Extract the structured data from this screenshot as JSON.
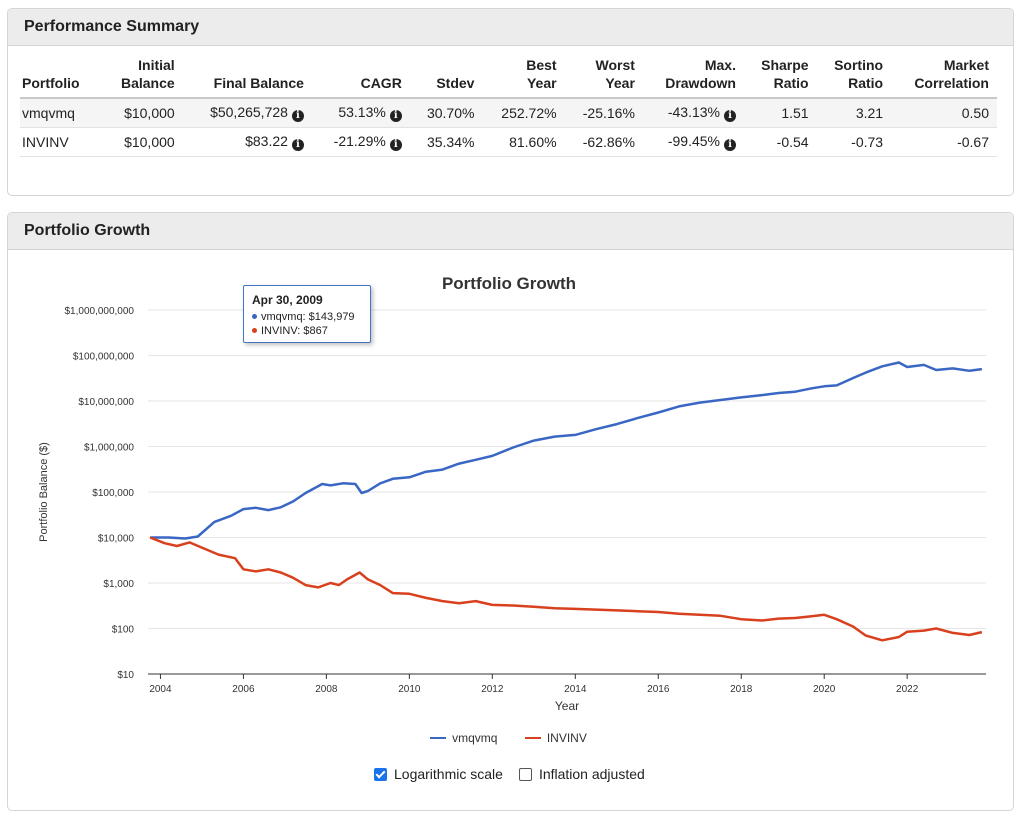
{
  "summary": {
    "title": "Performance Summary",
    "headers": {
      "portfolio": "Portfolio",
      "initial1": "Initial",
      "initial2": "Balance",
      "final": "Final Balance",
      "cagr": "CAGR",
      "stdev": "Stdev",
      "best1": "Best",
      "best2": "Year",
      "worst1": "Worst",
      "worst2": "Year",
      "maxdd1": "Max.",
      "maxdd2": "Drawdown",
      "sharpe1": "Sharpe",
      "sharpe2": "Ratio",
      "sortino1": "Sortino",
      "sortino2": "Ratio",
      "corr1": "Market",
      "corr2": "Correlation"
    },
    "rows": [
      {
        "portfolio": "vmqvmq",
        "initial": "$10,000",
        "final": "$50,265,728",
        "cagr": "53.13%",
        "stdev": "30.70%",
        "best": "252.72%",
        "worst": "-25.16%",
        "maxdd": "-43.13%",
        "sharpe": "1.51",
        "sortino": "3.21",
        "corr": "0.50"
      },
      {
        "portfolio": "INVINV",
        "initial": "$10,000",
        "final": "$83.22",
        "cagr": "-21.29%",
        "stdev": "35.34%",
        "best": "81.60%",
        "worst": "-62.86%",
        "maxdd": "-99.45%",
        "sharpe": "-0.54",
        "sortino": "-0.73",
        "corr": "-0.67"
      }
    ],
    "info_glyph": "i"
  },
  "growth": {
    "panel_title": "Portfolio Growth",
    "tooltip": {
      "date": "Apr 30, 2009",
      "lines": [
        "vmqvmq: $143,979",
        "INVINV: $867"
      ]
    },
    "options": {
      "log_label": "Logarithmic scale",
      "log_checked": true,
      "infl_label": "Inflation adjusted",
      "infl_checked": false
    }
  },
  "chart_data": {
    "type": "line",
    "title": "Portfolio Growth",
    "xlabel": "Year",
    "ylabel": "Portfolio Balance ($)",
    "yscale": "log",
    "ylim": [
      10,
      1000000000
    ],
    "xlim": [
      2003.7,
      2023.9
    ],
    "y_ticks": [
      {
        "v": 10,
        "label": "$10"
      },
      {
        "v": 100,
        "label": "$100"
      },
      {
        "v": 1000,
        "label": "$1,000"
      },
      {
        "v": 10000,
        "label": "$10,000"
      },
      {
        "v": 100000,
        "label": "$100,000"
      },
      {
        "v": 1000000,
        "label": "$1,000,000"
      },
      {
        "v": 10000000,
        "label": "$10,000,000"
      },
      {
        "v": 100000000,
        "label": "$100,000,000"
      },
      {
        "v": 1000000000,
        "label": "$1,000,000,000"
      }
    ],
    "x_ticks": [
      2004,
      2006,
      2008,
      2010,
      2012,
      2014,
      2016,
      2018,
      2020,
      2022
    ],
    "legend": "bottom",
    "series": [
      {
        "name": "vmqvmq",
        "color": "#3a66c4",
        "x": [
          2003.75,
          2004.2,
          2004.6,
          2004.9,
          2005.3,
          2005.7,
          2006.0,
          2006.3,
          2006.6,
          2006.9,
          2007.2,
          2007.5,
          2007.9,
          2008.1,
          2008.4,
          2008.7,
          2008.85,
          2009.0,
          2009.3,
          2009.6,
          2010.0,
          2010.4,
          2010.8,
          2011.2,
          2011.6,
          2012.0,
          2012.5,
          2013.0,
          2013.5,
          2014.0,
          2014.5,
          2015.0,
          2015.5,
          2016.0,
          2016.5,
          2017.0,
          2017.5,
          2018.0,
          2018.5,
          2018.9,
          2019.3,
          2019.7,
          2020.0,
          2020.3,
          2020.7,
          2021.0,
          2021.4,
          2021.8,
          2022.0,
          2022.4,
          2022.7,
          2023.1,
          2023.5,
          2023.8
        ],
        "y": [
          10000,
          10000,
          9500,
          10500,
          22000,
          30000,
          42000,
          45000,
          40000,
          46000,
          62000,
          95000,
          150000,
          140000,
          155000,
          150000,
          95000,
          105000,
          155000,
          195000,
          210000,
          280000,
          310000,
          420000,
          510000,
          620000,
          950000,
          1350000,
          1650000,
          1800000,
          2400000,
          3100000,
          4200000,
          5600000,
          7600000,
          9200000,
          10500000,
          12000000,
          13500000,
          15000000,
          16000000,
          19000000,
          21000000,
          22000000,
          32000000,
          42000000,
          58000000,
          70000000,
          56000000,
          62000000,
          48000000,
          52000000,
          46000000,
          50265728
        ]
      },
      {
        "name": "INVINV",
        "color": "#d8401e",
        "x": [
          2003.75,
          2004.1,
          2004.4,
          2004.7,
          2005.0,
          2005.4,
          2005.8,
          2006.0,
          2006.3,
          2006.6,
          2006.9,
          2007.2,
          2007.5,
          2007.8,
          2008.1,
          2008.3,
          2008.5,
          2008.8,
          2009.0,
          2009.3,
          2009.6,
          2010.0,
          2010.4,
          2010.8,
          2011.2,
          2011.6,
          2012.0,
          2012.5,
          2013.0,
          2013.5,
          2014.0,
          2014.5,
          2015.0,
          2015.5,
          2016.0,
          2016.5,
          2017.0,
          2017.5,
          2018.0,
          2018.5,
          2018.9,
          2019.3,
          2019.7,
          2020.0,
          2020.3,
          2020.7,
          2021.0,
          2021.4,
          2021.8,
          2022.0,
          2022.4,
          2022.7,
          2023.1,
          2023.5,
          2023.8
        ],
        "y": [
          10000,
          7500,
          6500,
          7800,
          6000,
          4200,
          3500,
          2000,
          1800,
          2000,
          1700,
          1300,
          900,
          800,
          1000,
          900,
          1200,
          1700,
          1200,
          900,
          600,
          580,
          470,
          400,
          360,
          400,
          330,
          320,
          300,
          280,
          270,
          260,
          250,
          240,
          230,
          210,
          200,
          190,
          160,
          150,
          165,
          170,
          185,
          200,
          160,
          110,
          70,
          55,
          65,
          85,
          90,
          100,
          80,
          72,
          83.22
        ]
      }
    ]
  }
}
